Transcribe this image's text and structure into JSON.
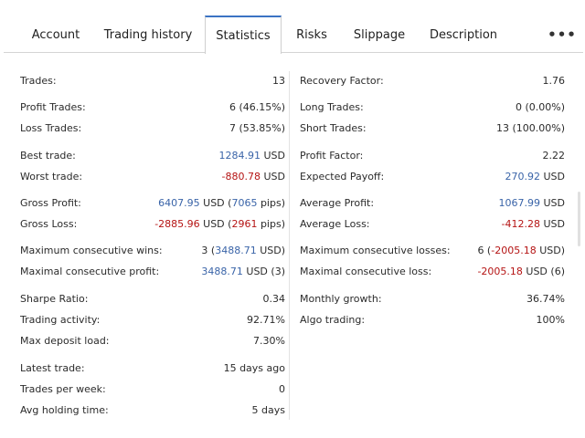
{
  "tabs": [
    {
      "label": "Account"
    },
    {
      "label": "Trading history"
    },
    {
      "label": "Statistics"
    },
    {
      "label": "Risks"
    },
    {
      "label": "Slippage"
    },
    {
      "label": "Description"
    }
  ],
  "more_label": "•••",
  "left": {
    "trades_label": "Trades:",
    "trades_value": "13",
    "profit_trades_label": "Profit Trades:",
    "profit_trades_value": "6 (46.15%)",
    "loss_trades_label": "Loss Trades:",
    "loss_trades_value": "7 (53.85%)",
    "best_trade_label": "Best trade:",
    "best_trade_num": "1284.91",
    "best_trade_unit": " USD",
    "worst_trade_label": "Worst trade:",
    "worst_trade_num": "-880.78",
    "worst_trade_unit": " USD",
    "gross_profit_label": "Gross Profit:",
    "gross_profit_num": "6407.95",
    "gross_profit_unit": " USD (",
    "gross_profit_pips": "7065",
    "gross_profit_pips_unit": " pips)",
    "gross_loss_label": "Gross Loss:",
    "gross_loss_num": "-2885.96",
    "gross_loss_unit": " USD (",
    "gross_loss_pips": "2961",
    "gross_loss_pips_unit": " pips)",
    "max_consec_wins_label": "Maximum consecutive wins:",
    "max_consec_wins_pre": "3 (",
    "max_consec_wins_num": "3488.71",
    "max_consec_wins_post": " USD)",
    "maximal_consec_profit_label": "Maximal consecutive profit:",
    "maximal_consec_profit_num": "3488.71",
    "maximal_consec_profit_post": " USD (3)",
    "sharpe_label": "Sharpe Ratio:",
    "sharpe_value": "0.34",
    "trading_activity_label": "Trading activity:",
    "trading_activity_value": "92.71%",
    "max_deposit_load_label": "Max deposit load:",
    "max_deposit_load_value": "7.30%",
    "latest_trade_label": "Latest trade:",
    "latest_trade_value": "15 days ago",
    "trades_per_week_label": "Trades per week:",
    "trades_per_week_value": "0",
    "avg_holding_label": "Avg holding time:",
    "avg_holding_value": "5 days"
  },
  "right": {
    "recovery_factor_label": "Recovery Factor:",
    "recovery_factor_value": "1.76",
    "long_trades_label": "Long Trades:",
    "long_trades_value": "0 (0.00%)",
    "short_trades_label": "Short Trades:",
    "short_trades_value": "13 (100.00%)",
    "profit_factor_label": "Profit Factor:",
    "profit_factor_value": "2.22",
    "expected_payoff_label": "Expected Payoff:",
    "expected_payoff_num": "270.92",
    "expected_payoff_unit": " USD",
    "avg_profit_label": "Average Profit:",
    "avg_profit_num": "1067.99",
    "avg_profit_unit": " USD",
    "avg_loss_label": "Average Loss:",
    "avg_loss_num": "-412.28",
    "avg_loss_unit": " USD",
    "max_consec_losses_label": "Maximum consecutive losses:",
    "max_consec_losses_pre": "6 (",
    "max_consec_losses_num": "-2005.18",
    "max_consec_losses_post": " USD)",
    "maximal_consec_loss_label": "Maximal consecutive loss:",
    "maximal_consec_loss_num": "-2005.18",
    "maximal_consec_loss_post": " USD (6)",
    "monthly_growth_label": "Monthly growth:",
    "monthly_growth_value": "36.74%",
    "algo_trading_label": "Algo trading:",
    "algo_trading_value": "100%"
  },
  "colors": {
    "accent_blue": "#3a64a8",
    "loss_red": "#b51414",
    "active_tab_border": "#3b73c4"
  }
}
